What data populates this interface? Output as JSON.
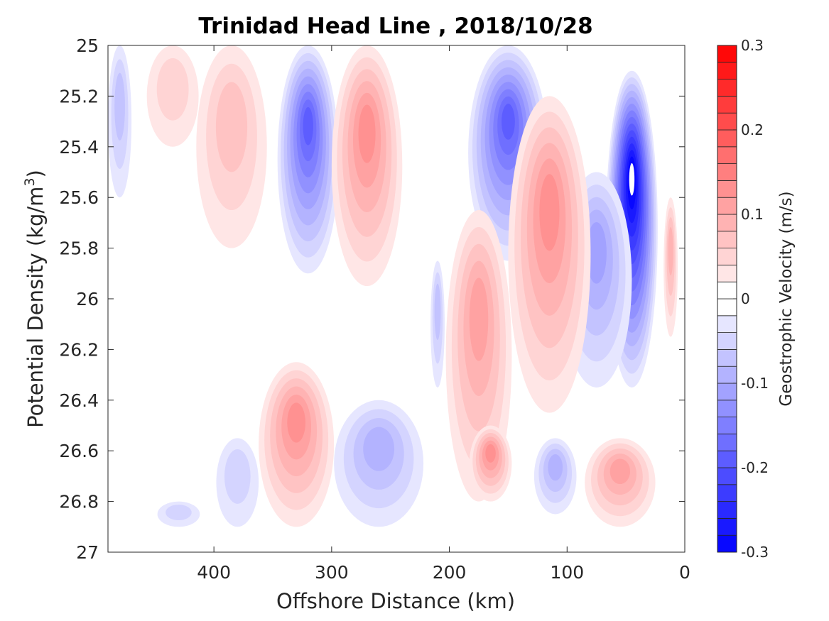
{
  "chart_data": {
    "type": "heatmap",
    "title": "Trinidad Head Line , 2018/10/28",
    "xlabel": "Offshore Distance (km)",
    "ylabel_main": "Potential Density (kg/m",
    "ylabel_sup": "3",
    "ylabel_close": ")",
    "colorbar_label": "Geostrophic Velocity (m/s)",
    "xlim": [
      0,
      490
    ],
    "x_reversed": true,
    "ylim": [
      25,
      27
    ],
    "y_reversed": true,
    "x_ticks": [
      {
        "value": 400,
        "label": "400"
      },
      {
        "value": 300,
        "label": "300"
      },
      {
        "value": 200,
        "label": "200"
      },
      {
        "value": 100,
        "label": "100"
      },
      {
        "value": 0,
        "label": "0"
      }
    ],
    "y_ticks": [
      {
        "value": 25,
        "label": "25"
      },
      {
        "value": 25.2,
        "label": "25.2"
      },
      {
        "value": 25.4,
        "label": "25.4"
      },
      {
        "value": 25.6,
        "label": "25.6"
      },
      {
        "value": 25.8,
        "label": "25.8"
      },
      {
        "value": 26,
        "label": "26"
      },
      {
        "value": 26.2,
        "label": "26.2"
      },
      {
        "value": 26.4,
        "label": "26.4"
      },
      {
        "value": 26.6,
        "label": "26.6"
      },
      {
        "value": 26.8,
        "label": "26.8"
      },
      {
        "value": 27,
        "label": "27"
      }
    ],
    "colorbar_ticks": [
      {
        "value": 0.3,
        "label": "0.3"
      },
      {
        "value": 0.2,
        "label": "0.2"
      },
      {
        "value": 0.1,
        "label": "0.1"
      },
      {
        "value": 0,
        "label": "0"
      },
      {
        "value": -0.1,
        "label": "-0.1"
      },
      {
        "value": -0.2,
        "label": "-0.2"
      },
      {
        "value": -0.3,
        "label": "-0.3"
      }
    ],
    "clim": [
      -0.3,
      0.3
    ],
    "levels": [
      -0.3,
      -0.28,
      -0.26,
      -0.24,
      -0.22,
      -0.2,
      -0.18,
      -0.16,
      -0.14,
      -0.12,
      -0.1,
      -0.08,
      -0.06,
      -0.04,
      -0.02,
      0,
      0.02,
      0.04,
      0.06,
      0.08,
      0.1,
      0.12,
      0.14,
      0.16,
      0.18,
      0.2,
      0.22,
      0.24,
      0.26,
      0.28,
      0.3
    ],
    "grid": false,
    "colormap": "blue-white-red",
    "colors": {
      "negative_max": "#0000ff",
      "zero": "#ffffff",
      "positive_max": "#ff0000"
    },
    "features": [
      {
        "x": 480,
        "y_top": 25.0,
        "y_bottom": 25.6,
        "peak": -0.05,
        "x_half_width": 10
      },
      {
        "x": 435,
        "y_top": 25.0,
        "y_bottom": 25.4,
        "peak": 0.03,
        "x_half_width": 22
      },
      {
        "x": 385,
        "y_top": 25.0,
        "y_bottom": 25.8,
        "peak": 0.05,
        "x_half_width": 30
      },
      {
        "x": 320,
        "y_top": 25.0,
        "y_bottom": 25.9,
        "peak": -0.18,
        "x_half_width": 26
      },
      {
        "x": 270,
        "y_top": 25.0,
        "y_bottom": 25.95,
        "peak": 0.12,
        "x_half_width": 30
      },
      {
        "x": 150,
        "y_top": 25.0,
        "y_bottom": 25.85,
        "peak": -0.18,
        "x_half_width": 34
      },
      {
        "x": 210,
        "y_top": 25.85,
        "y_bottom": 26.35,
        "peak": -0.05,
        "x_half_width": 6
      },
      {
        "x": 45,
        "y_top": 25.1,
        "y_bottom": 26.35,
        "peak": -0.3,
        "x_half_width": 22
      },
      {
        "x": 75,
        "y_top": 25.5,
        "y_bottom": 26.35,
        "peak": -0.1,
        "x_half_width": 30
      },
      {
        "x": 115,
        "y_top": 25.2,
        "y_bottom": 26.45,
        "peak": 0.11,
        "x_half_width": 35
      },
      {
        "x": 175,
        "y_top": 25.65,
        "y_bottom": 26.8,
        "peak": 0.09,
        "x_half_width": 28
      },
      {
        "x": 12,
        "y_top": 25.6,
        "y_bottom": 26.15,
        "peak": 0.08,
        "x_half_width": 6
      },
      {
        "x": 330,
        "y_top": 26.25,
        "y_bottom": 26.9,
        "peak": 0.12,
        "x_half_width": 32
      },
      {
        "x": 260,
        "y_top": 26.4,
        "y_bottom": 26.9,
        "peak": -0.07,
        "x_half_width": 38
      },
      {
        "x": 380,
        "y_top": 26.55,
        "y_bottom": 26.9,
        "peak": -0.04,
        "x_half_width": 18
      },
      {
        "x": 430,
        "y_top": 26.8,
        "y_bottom": 26.9,
        "peak": -0.03,
        "x_half_width": 18
      },
      {
        "x": 165,
        "y_top": 26.5,
        "y_bottom": 26.8,
        "peak": 0.11,
        "x_half_width": 18
      },
      {
        "x": 110,
        "y_top": 26.55,
        "y_bottom": 26.85,
        "peak": -0.07,
        "x_half_width": 18
      },
      {
        "x": 55,
        "y_top": 26.55,
        "y_bottom": 26.9,
        "peak": 0.1,
        "x_half_width": 30
      }
    ]
  }
}
